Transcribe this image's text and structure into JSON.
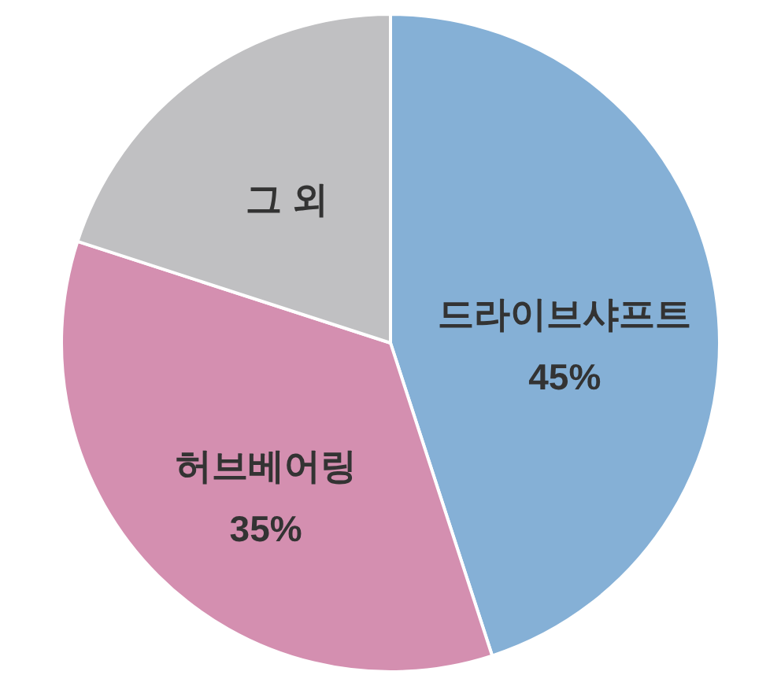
{
  "chart_data": {
    "type": "pie",
    "categories": [
      "드라이브샤프트",
      "허브베어링",
      "그 외"
    ],
    "values": [
      45,
      35,
      20
    ],
    "value_labels": [
      "45%",
      "35%",
      null
    ],
    "colors": [
      "#85b0d6",
      "#d48fb0",
      "#c0c0c2"
    ]
  }
}
